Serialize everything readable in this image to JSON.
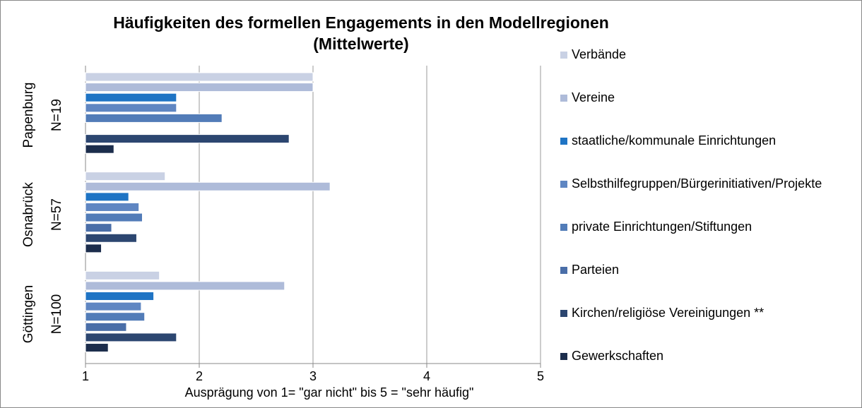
{
  "chart_data": {
    "type": "hbar",
    "title": "Häufigkeiten des formellen Engagements in den Modellregionen (Mittelwerte)",
    "x_label": "Ausprägung  von 1= \"gar nicht\" bis 5 = \"sehr häufig\"",
    "categories": [
      "Papenburg N=19",
      "Osnabrück N=57",
      "Göttingen N=100"
    ],
    "series": [
      {
        "name": "Verbände",
        "color": "#c9d1e4",
        "values": [
          3.0,
          1.7,
          1.65
        ]
      },
      {
        "name": "Vereine",
        "color": "#aebbd9",
        "values": [
          3.0,
          3.15,
          2.75
        ]
      },
      {
        "name": "staatliche/kommunale Einrichtungen",
        "color": "#1f74c4",
        "values": [
          1.8,
          1.38,
          1.6
        ]
      },
      {
        "name": "Selbsthilfegruppen/Bürgerinitiativen/Projekte",
        "color": "#5f86c2",
        "values": [
          1.8,
          1.47,
          1.49
        ]
      },
      {
        "name": "private Einrichtungen/Stiftungen",
        "color": "#527cb8",
        "values": [
          2.2,
          1.5,
          1.52
        ]
      },
      {
        "name": "Parteien",
        "color": "#4a6ea8",
        "values": [
          1.0,
          1.23,
          1.36
        ]
      },
      {
        "name": "Kirchen/religiöse Vereinigungen **",
        "color": "#2c4670",
        "values": [
          2.79,
          1.45,
          1.8
        ]
      },
      {
        "name": "Gewerkschaften",
        "color": "#1c2d4c",
        "values": [
          1.25,
          1.14,
          1.2
        ]
      }
    ],
    "xlim": [
      1,
      5
    ],
    "xticks": [
      1,
      2,
      3,
      4,
      5
    ],
    "grid": true,
    "legend": "right"
  }
}
